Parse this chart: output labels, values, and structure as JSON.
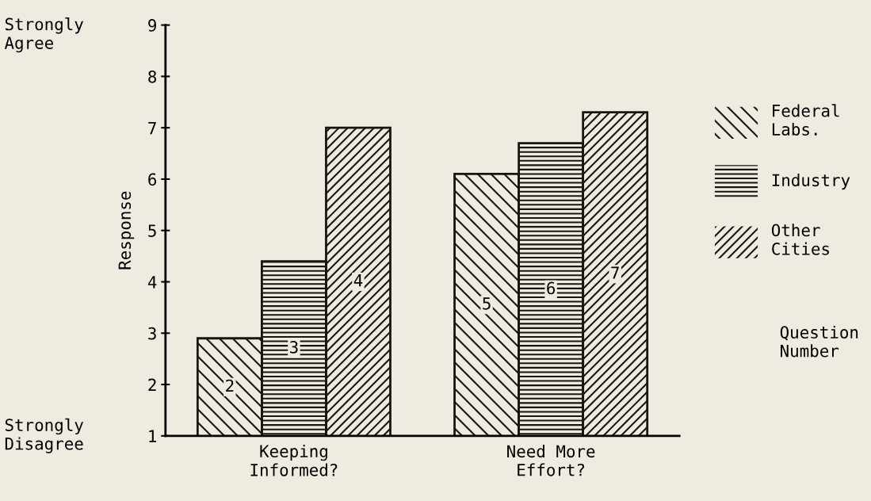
{
  "chart_data": {
    "type": "bar",
    "ylabel": "Response",
    "categories": [
      "Keeping\nInformed?",
      "Need More\nEffort?"
    ],
    "series": [
      {
        "name": "Federal\nLabs.",
        "color": "#1a1412",
        "values": [
          2.9,
          6.1
        ]
      },
      {
        "name": "Industry",
        "color": "#1a1412",
        "values": [
          4.4,
          6.7
        ]
      },
      {
        "name": "Other\nCities",
        "color": "#1a1412",
        "values": [
          7.0,
          7.3
        ]
      }
    ],
    "ylim": [
      1,
      9
    ],
    "yticks": [
      1,
      2,
      3,
      4,
      5,
      6,
      7,
      8,
      9
    ],
    "annotations": [
      "Strongly\nAgree",
      "Strongly\nDisagree",
      "Question\nNumber",
      "2",
      "3",
      "4",
      "5",
      "6",
      "7"
    ],
    "legend": "right",
    "grid": false
  }
}
